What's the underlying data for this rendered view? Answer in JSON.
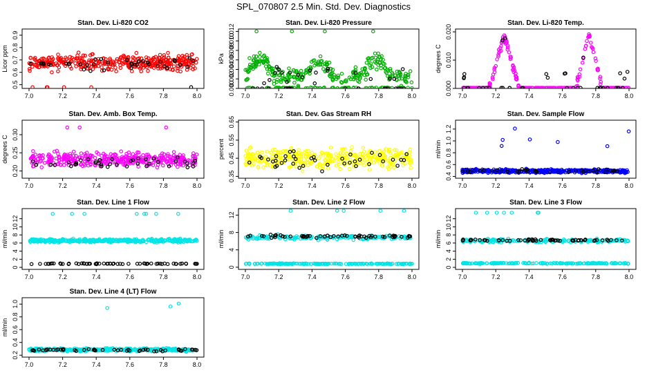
{
  "page": {
    "title": "SPL_070807  2.5 Min. Std. Dev. Diagnostics"
  },
  "chart_data": [
    {
      "type": "scatter",
      "title": "Stan. Dev. Li-820 CO2",
      "xlabel": "",
      "ylabel": "Licor ppm",
      "xlim": [
        7.0,
        8.0
      ],
      "ylim": [
        0.47,
        0.95
      ],
      "xticks": [
        "7.0",
        "7.2",
        "7.4",
        "7.6",
        "7.8",
        "8.0"
      ],
      "yticks": [
        "0.5",
        "0.6",
        "0.7",
        "0.8",
        "0.9"
      ],
      "series": [
        {
          "name": "main",
          "color": "#ff0000",
          "values_summary": {
            "center": 0.68,
            "spread": 0.06,
            "count": 380
          }
        },
        {
          "name": "black",
          "color": "#000000",
          "values_summary": {
            "center": 0.66,
            "spread": 0.05,
            "count": 40
          }
        }
      ]
    },
    {
      "type": "scatter",
      "title": "Stan. Dev. Li-820 Pressure",
      "xlabel": "",
      "ylabel": "kPa",
      "xlim": [
        7.0,
        8.0
      ],
      "ylim": [
        0.0,
        0.0125
      ],
      "xticks": [
        "7.0",
        "7.2",
        "7.4",
        "7.6",
        "7.8",
        "8.0"
      ],
      "yticks": [
        "0.000",
        "0.002",
        "0.004",
        "0.006",
        "0.008",
        "0.010",
        "0.012"
      ],
      "series": [
        {
          "name": "main",
          "color": "#00b000",
          "values_summary": {
            "center": 0.004,
            "spread": 0.002,
            "count": 380
          }
        },
        {
          "name": "black",
          "color": "#000000",
          "values_summary": {
            "center": 0.003,
            "spread": 0.002,
            "count": 40
          }
        }
      ]
    },
    {
      "type": "scatter",
      "title": "Stan. Dev. Li-820 Temp.",
      "xlabel": "",
      "ylabel": "degrees C",
      "xlim": [
        7.0,
        8.0
      ],
      "ylim": [
        0.0,
        0.021
      ],
      "xticks": [
        "7.0",
        "7.2",
        "7.4",
        "7.6",
        "7.8",
        "8.0"
      ],
      "yticks": [
        "0.000",
        "0.010",
        "0.020"
      ],
      "series": [
        {
          "name": "main",
          "color": "#ff00ff",
          "values_summary": {
            "peaks_at": [
              7.25,
              7.76
            ],
            "peak_height": 0.019,
            "count": 300
          }
        },
        {
          "name": "black",
          "color": "#000000",
          "values_summary": {
            "count": 40
          }
        }
      ]
    },
    {
      "type": "scatter",
      "title": "Stan. Dev. Amb. Box Temp.",
      "xlabel": "",
      "ylabel": "degrees C",
      "xlim": [
        7.0,
        8.0
      ],
      "ylim": [
        0.18,
        0.34
      ],
      "xticks": [
        "7.0",
        "7.2",
        "7.4",
        "7.6",
        "7.8",
        "8.0"
      ],
      "yticks": [
        "0.20",
        "0.25",
        "0.30"
      ],
      "series": [
        {
          "name": "main",
          "color": "#ff00ff",
          "values_summary": {
            "center": 0.23,
            "spread": 0.015,
            "count": 380
          }
        },
        {
          "name": "black",
          "color": "#000000",
          "values_summary": {
            "center": 0.225,
            "spread": 0.012,
            "count": 40
          }
        }
      ]
    },
    {
      "type": "scatter",
      "title": "Stan. Dev. Gas Stream RH",
      "xlabel": "",
      "ylabel": "percent",
      "xlim": [
        7.0,
        8.0
      ],
      "ylim": [
        0.34,
        0.66
      ],
      "xticks": [
        "7.0",
        "7.2",
        "7.4",
        "7.6",
        "7.8",
        "8.0"
      ],
      "yticks": [
        "0.35",
        "0.45",
        "0.55",
        "0.65"
      ],
      "series": [
        {
          "name": "main",
          "color": "#ffff00",
          "values_summary": {
            "center": 0.45,
            "spread": 0.05,
            "count": 380
          }
        },
        {
          "name": "black",
          "color": "#000000",
          "values_summary": {
            "center": 0.44,
            "spread": 0.04,
            "count": 40
          }
        }
      ]
    },
    {
      "type": "scatter",
      "title": "Stan. Dev. Sample Flow",
      "xlabel": "",
      "ylabel": "ml/min",
      "xlim": [
        7.0,
        8.0
      ],
      "ylim": [
        0.37,
        1.35
      ],
      "xticks": [
        "7.0",
        "7.2",
        "7.4",
        "7.6",
        "7.8",
        "8.0"
      ],
      "yticks": [
        "0.4",
        "0.6",
        "0.8",
        "1.0",
        "1.2"
      ],
      "series": [
        {
          "name": "main",
          "color": "#0000ff",
          "values_summary": {
            "center": 0.5,
            "spread": 0.03,
            "count": 380
          }
        },
        {
          "name": "black",
          "color": "#000000",
          "values_summary": {
            "center": 0.5,
            "spread": 0.02,
            "count": 40
          }
        }
      ]
    },
    {
      "type": "scatter",
      "title": "Stan. Dev. Line 1 Flow",
      "xlabel": "",
      "ylabel": "ml/min",
      "xlim": [
        7.0,
        8.0
      ],
      "ylim": [
        -0.5,
        14.5
      ],
      "xticks": [
        "7.0",
        "7.2",
        "7.4",
        "7.6",
        "7.8",
        "8.0"
      ],
      "yticks": [
        "0",
        "2",
        "4",
        "6",
        "8",
        "10",
        "12"
      ],
      "series": [
        {
          "name": "main",
          "color": "#00e5e5",
          "values_summary": {
            "center": 6.7,
            "spread": 0.4,
            "count": 380
          }
        },
        {
          "name": "black",
          "color": "#000000",
          "values_summary": {
            "center": 1.0,
            "spread": 0.1,
            "count": 60
          }
        }
      ]
    },
    {
      "type": "scatter",
      "title": "Stan. Dev. Line 2 Flow",
      "xlabel": "",
      "ylabel": "ml/min",
      "xlim": [
        7.0,
        8.0
      ],
      "ylim": [
        -0.5,
        13.5
      ],
      "xticks": [
        "7.0",
        "7.2",
        "7.4",
        "7.6",
        "7.8",
        "8.0"
      ],
      "yticks": [
        "0",
        "4",
        "8",
        "12"
      ],
      "series": [
        {
          "name": "main",
          "color": "#00e5e5",
          "values_summary": {
            "center_upper": 7.0,
            "center_lower": 0.8,
            "count": 380
          }
        },
        {
          "name": "black",
          "color": "#000000",
          "values_summary": {
            "center": 7.2,
            "spread": 0.3,
            "count": 60
          }
        }
      ]
    },
    {
      "type": "scatter",
      "title": "Stan. Dev. Line 3 Flow",
      "xlabel": "",
      "ylabel": "ml/min",
      "xlim": [
        7.0,
        8.0
      ],
      "ylim": [
        -0.5,
        14.5
      ],
      "xticks": [
        "7.0",
        "7.2",
        "7.4",
        "7.6",
        "7.8",
        "8.0"
      ],
      "yticks": [
        "0",
        "2",
        "4",
        "6",
        "8",
        "10",
        "12"
      ],
      "series": [
        {
          "name": "main",
          "color": "#00e5e5",
          "values_summary": {
            "center_upper": 6.7,
            "center_lower": 1.0,
            "count": 380
          }
        },
        {
          "name": "black",
          "color": "#000000",
          "values_summary": {
            "center": 6.8,
            "spread": 0.2,
            "count": 60
          }
        }
      ]
    },
    {
      "type": "scatter",
      "title": "Stan. Dev. Line 4 (LT) Flow",
      "xlabel": "",
      "ylabel": "ml/min",
      "xlim": [
        7.0,
        8.0
      ],
      "ylim": [
        0.17,
        1.1
      ],
      "xticks": [
        "7.0",
        "7.2",
        "7.4",
        "7.6",
        "7.8",
        "8.0"
      ],
      "yticks": [
        "0.2",
        "0.4",
        "0.6",
        "0.8",
        "1.0"
      ],
      "series": [
        {
          "name": "main",
          "color": "#00e5e5",
          "values_summary": {
            "center": 0.28,
            "spread": 0.02,
            "count": 380
          }
        },
        {
          "name": "black",
          "color": "#000000",
          "values_summary": {
            "center": 0.28,
            "spread": 0.02,
            "count": 50
          }
        }
      ]
    }
  ]
}
